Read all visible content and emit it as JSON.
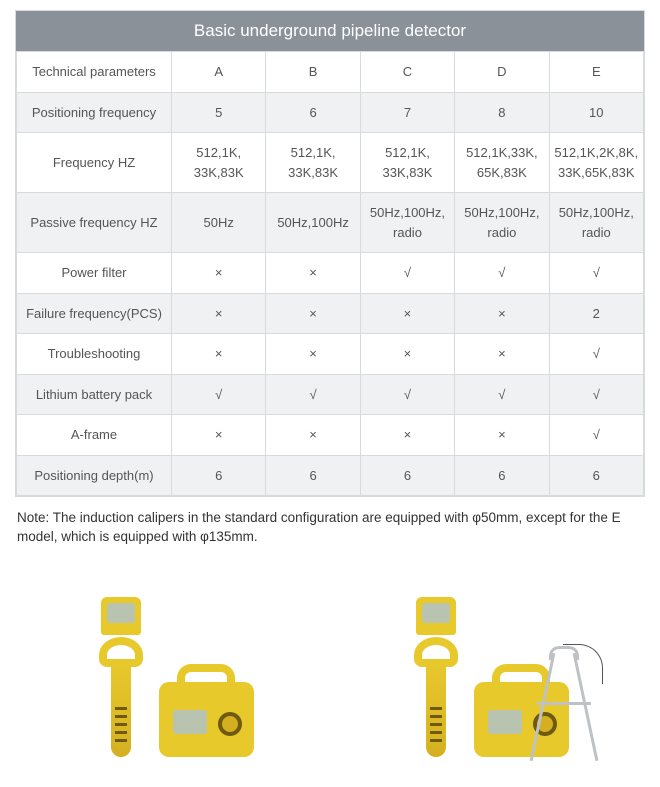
{
  "table": {
    "title": "Basic underground pipeline detector",
    "param_header": "Technical parameters",
    "columns": [
      "A",
      "B",
      "C",
      "D",
      "E"
    ],
    "rows": [
      {
        "param": "Positioning frequency",
        "vals": [
          "5",
          "6",
          "7",
          "8",
          "10"
        ]
      },
      {
        "param": "Frequency HZ",
        "vals": [
          "512,1K, 33K,83K",
          "512,1K, 33K,83K",
          "512,1K, 33K,83K",
          "512,1K,33K, 65K,83K",
          "512,1K,2K,8K, 33K,65K,83K"
        ]
      },
      {
        "param": "Passive frequency HZ",
        "vals": [
          "50Hz",
          "50Hz,100Hz",
          "50Hz,100Hz, radio",
          "50Hz,100Hz, radio",
          "50Hz,100Hz, radio"
        ]
      },
      {
        "param": "Power filter",
        "vals": [
          "×",
          "×",
          "√",
          "√",
          "√"
        ]
      },
      {
        "param": "Failure frequency(PCS)",
        "vals": [
          "×",
          "×",
          "×",
          "×",
          "2"
        ]
      },
      {
        "param": "Troubleshooting",
        "vals": [
          "×",
          "×",
          "×",
          "×",
          "√"
        ]
      },
      {
        "param": "Lithium battery pack",
        "vals": [
          "√",
          "√",
          "√",
          "√",
          "√"
        ]
      },
      {
        "param": "A-frame",
        "vals": [
          "×",
          "×",
          "×",
          "×",
          "√"
        ]
      },
      {
        "param": "Positioning depth(m)",
        "vals": [
          "6",
          "6",
          "6",
          "6",
          "6"
        ]
      }
    ]
  },
  "note": "Note: The induction calipers in the standard configuration are equipped with φ50mm, except for the E model, which is equipped with φ135mm.",
  "colors": {
    "header_bg": "#8a9199",
    "header_text": "#ffffff",
    "row_alt_bg": "#f0f1f2",
    "border": "#d8dadc",
    "device_yellow": "#e8c92c"
  }
}
